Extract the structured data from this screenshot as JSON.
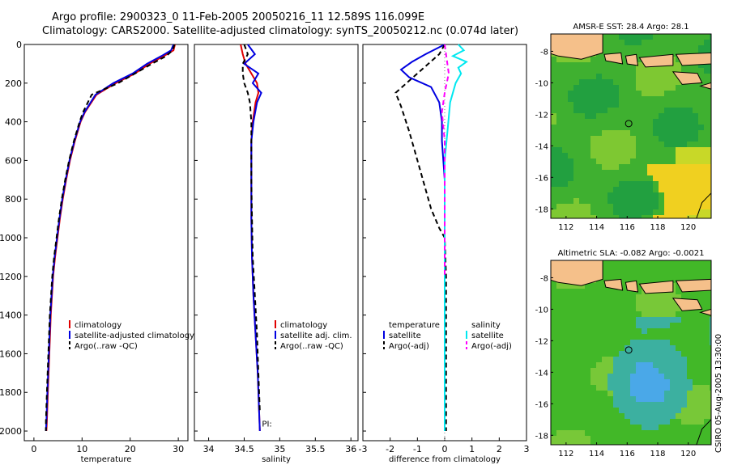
{
  "header": {
    "line1": "Argo profile:  2900323_0 11-Feb-2005 20050216_11 12.589S 116.099E",
    "line2": "Climatology: CARS2000. Satellite-adjusted climatology: synTS_20050212.nc (0.074d later)"
  },
  "side_note": "CSIRO 05-Aug-2005 13:30:00",
  "colors": {
    "clim": "#e00000",
    "sat": "#0000e0",
    "argo": "#000000",
    "sal_sat": "#00e8f0",
    "sal_argo": "#ff00ff",
    "land": "#f5c08a"
  },
  "chart_data": [
    {
      "type": "line",
      "xlabel": "temperature",
      "xlim": [
        -2,
        32
      ],
      "ylim": [
        0,
        2050
      ],
      "xticks": [
        0,
        10,
        20,
        30
      ],
      "yticks": [
        0,
        200,
        400,
        600,
        800,
        1000,
        1200,
        1400,
        1600,
        1800,
        2000
      ],
      "y_reversed": true,
      "legend": [
        "climatology",
        "satellite-adjusted climatology",
        "Argo(..raw -QC)"
      ],
      "series": [
        {
          "name": "climatology",
          "x": [
            29.3,
            29.0,
            27.0,
            24.0,
            21.0,
            17.0,
            13.0,
            10.6,
            9.7,
            8.5,
            7.5,
            6.7,
            6.0,
            5.4,
            4.9,
            4.4,
            4.0,
            3.5,
            3.2,
            2.9,
            2.7,
            2.6
          ],
          "y": [
            0,
            30,
            60,
            100,
            150,
            200,
            260,
            350,
            400,
            500,
            600,
            700,
            800,
            900,
            1000,
            1100,
            1200,
            1400,
            1600,
            1800,
            1950,
            2000
          ]
        },
        {
          "name": "satellite-adjusted climatology",
          "x": [
            29.0,
            28.5,
            26.5,
            23.5,
            20.5,
            16.5,
            12.8,
            10.5,
            9.6,
            8.4,
            7.4,
            6.6,
            5.9,
            5.3,
            4.8,
            4.3,
            3.9,
            3.4,
            3.1,
            2.8,
            2.6,
            2.5
          ],
          "y": [
            0,
            30,
            60,
            100,
            150,
            200,
            260,
            350,
            400,
            500,
            600,
            700,
            800,
            900,
            1000,
            1100,
            1200,
            1400,
            1600,
            1800,
            1950,
            2000
          ]
        },
        {
          "name": "Argo(..raw -QC)",
          "x": [
            29.2,
            28.8,
            27.5,
            24.5,
            21.0,
            17.5,
            12.0,
            10.2,
            9.5,
            8.3,
            7.3,
            6.5,
            5.8,
            5.2,
            4.7,
            4.2,
            3.8,
            3.3,
            3.0,
            2.7,
            2.5,
            2.5
          ],
          "y": [
            0,
            30,
            60,
            100,
            150,
            200,
            260,
            350,
            400,
            500,
            600,
            700,
            800,
            900,
            1000,
            1100,
            1200,
            1400,
            1600,
            1800,
            1950,
            2000
          ]
        }
      ]
    },
    {
      "type": "line",
      "xlabel": "salinity",
      "xlim": [
        33.8,
        36.1
      ],
      "ylim": [
        0,
        2050
      ],
      "xticks": [
        34,
        34.5,
        35,
        35.5,
        36
      ],
      "yticks": [
        0,
        200,
        400,
        600,
        800,
        1000,
        1200,
        1400,
        1600,
        1800,
        2000
      ],
      "y_reversed": true,
      "legend": [
        "climatology",
        "satellite adj. clim.",
        "Argo(..raw -QC)"
      ],
      "annotation": "PI:",
      "series": [
        {
          "name": "climatology",
          "x": [
            34.45,
            34.48,
            34.52,
            34.6,
            34.68,
            34.7,
            34.66,
            34.62,
            34.6,
            34.6,
            34.6,
            34.61,
            34.63,
            34.66,
            34.69,
            34.71,
            34.72
          ],
          "y": [
            0,
            50,
            100,
            150,
            200,
            250,
            300,
            400,
            500,
            700,
            900,
            1100,
            1300,
            1500,
            1700,
            1900,
            2000
          ]
        },
        {
          "name": "satellite adj. clim.",
          "x": [
            34.55,
            34.65,
            34.5,
            34.7,
            34.62,
            34.74,
            34.68,
            34.63,
            34.6,
            34.6,
            34.6,
            34.61,
            34.63,
            34.66,
            34.69,
            34.71,
            34.72
          ],
          "y": [
            0,
            50,
            100,
            150,
            200,
            250,
            300,
            400,
            500,
            700,
            900,
            1100,
            1300,
            1500,
            1700,
            1900,
            2000
          ]
        },
        {
          "name": "Argo(..raw -QC)",
          "x": [
            34.5,
            34.55,
            34.48,
            34.48,
            34.5,
            34.55,
            34.58,
            34.6,
            34.6,
            34.6,
            34.61,
            34.62,
            34.65,
            34.68,
            34.7,
            34.72
          ],
          "y": [
            0,
            50,
            100,
            150,
            200,
            250,
            300,
            400,
            500,
            700,
            900,
            1100,
            1300,
            1500,
            1700,
            1900
          ]
        }
      ]
    },
    {
      "type": "line",
      "xlabel": "difference from climatology",
      "xlim": [
        -3,
        3
      ],
      "ylim": [
        0,
        2050
      ],
      "xticks": [
        -3,
        -2,
        -1,
        0,
        1,
        2,
        3
      ],
      "yticks": [
        0,
        200,
        400,
        600,
        800,
        1000,
        1200,
        1400,
        1600,
        1800,
        2000
      ],
      "y_reversed": true,
      "legend_left": [
        "temperature",
        "satellite",
        "Argo(-adj)"
      ],
      "legend_right": [
        "salinity",
        "satellite",
        "Argo(-adj)"
      ],
      "series": [
        {
          "name": "temperature satellite",
          "x": [
            0.0,
            -0.7,
            -1.2,
            -1.6,
            -1.3,
            -0.5,
            -0.2,
            -0.1,
            -0.1,
            0.0,
            0.0,
            0.0,
            0.0,
            0.0,
            0.0,
            0.0
          ],
          "y": [
            0,
            50,
            90,
            130,
            170,
            220,
            300,
            400,
            500,
            700,
            900,
            1100,
            1300,
            1500,
            1800,
            2000
          ]
        },
        {
          "name": "temperature Argo(-adj)",
          "x": [
            0.0,
            -0.2,
            -0.6,
            -1.0,
            -1.4,
            -1.8,
            -1.6,
            -1.3,
            -1.1,
            -0.8,
            -0.5,
            -0.2,
            0.0,
            0.05,
            0.05,
            0.05,
            0.05
          ],
          "y": [
            0,
            50,
            100,
            150,
            200,
            250,
            320,
            450,
            550,
            700,
            850,
            950,
            1000,
            1200,
            1500,
            1800,
            2000
          ]
        },
        {
          "name": "salinity satellite",
          "x": [
            0.5,
            0.7,
            0.3,
            0.8,
            0.5,
            0.6,
            0.4,
            0.2,
            0.1,
            0.0,
            0.0,
            0.0,
            0.0,
            0.0,
            0.0,
            0.0,
            0.0
          ],
          "y": [
            0,
            30,
            60,
            90,
            120,
            150,
            200,
            300,
            450,
            600,
            750,
            900,
            1100,
            1300,
            1500,
            1800,
            2000
          ]
        },
        {
          "name": "salinity Argo(-adj)",
          "x": [
            0.0,
            0.15,
            0.0,
            -0.1,
            0.0,
            0.0,
            0.0
          ],
          "y": [
            0,
            150,
            250,
            350,
            500,
            900,
            1200
          ]
        }
      ]
    },
    {
      "type": "heatmap",
      "title": "AMSR-E SST: 28.4 Argo: 28.1",
      "xlim": [
        111,
        121.5
      ],
      "ylim": [
        -18.6,
        -6.9
      ],
      "xticks": [
        112,
        114,
        116,
        118,
        120
      ],
      "yticks": [
        -8,
        -10,
        -12,
        -14,
        -16,
        -18
      ],
      "marker": {
        "lon": 116.1,
        "lat": -12.589
      }
    },
    {
      "type": "heatmap",
      "title": "Altimetric SLA: -0.082 Argo: -0.0021",
      "xlim": [
        111,
        121.5
      ],
      "ylim": [
        -18.6,
        -6.9
      ],
      "xticks": [
        112,
        114,
        116,
        118,
        120
      ],
      "yticks": [
        -8,
        -10,
        -12,
        -14,
        -16,
        -18
      ],
      "marker": {
        "lon": 116.1,
        "lat": -12.589
      }
    }
  ]
}
